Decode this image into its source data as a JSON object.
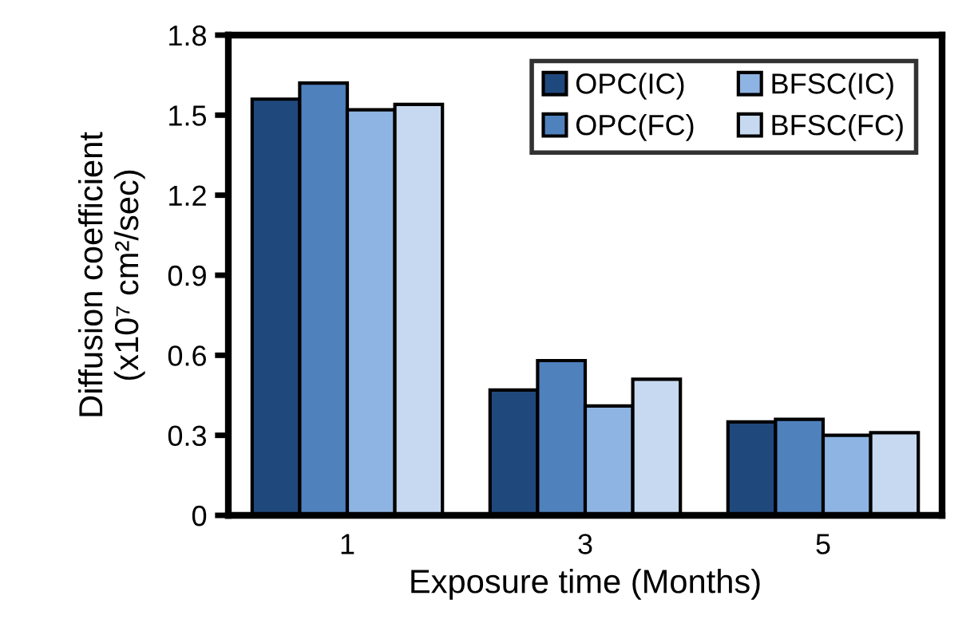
{
  "chart_data": {
    "type": "bar",
    "xlabel": "Exposure time (Months)",
    "ylabel": "Diffusion coefficient\n(x10⁷ cm²/sec)",
    "categories": [
      "1",
      "3",
      "5"
    ],
    "series": [
      {
        "name": "OPC(IC)",
        "color": "#1f497d",
        "values": [
          1.56,
          0.47,
          0.35
        ]
      },
      {
        "name": "OPC(FC)",
        "color": "#4f81bd",
        "values": [
          1.62,
          0.58,
          0.36
        ]
      },
      {
        "name": "BFSC(IC)",
        "color": "#8eb4e3",
        "values": [
          1.52,
          0.41,
          0.3
        ]
      },
      {
        "name": "BFSC(FC)",
        "color": "#c6d9f1",
        "values": [
          1.54,
          0.51,
          0.31
        ]
      }
    ],
    "ylim": [
      0,
      1.8
    ],
    "yticks": [
      0,
      0.3,
      0.6,
      0.9,
      1.2,
      1.5,
      1.8
    ],
    "grid": false,
    "legend": "top right"
  }
}
